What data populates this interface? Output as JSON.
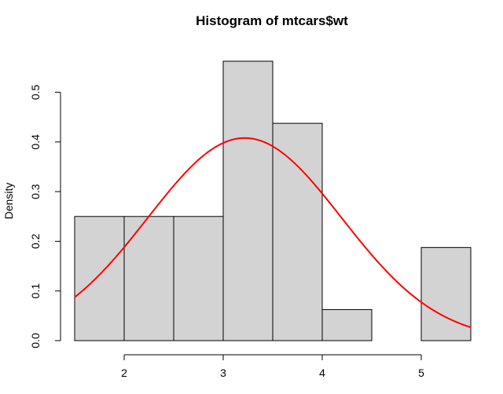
{
  "chart_data": {
    "type": "bar",
    "title": "Histogram of mtcars$wt",
    "xlabel": "",
    "ylabel": "Density",
    "xlim": [
      1.5,
      5.5
    ],
    "ylim": [
      0,
      0.5625
    ],
    "bins": [
      {
        "x0": 1.5,
        "x1": 2.0,
        "density": 0.25
      },
      {
        "x0": 2.0,
        "x1": 2.5,
        "density": 0.25
      },
      {
        "x0": 2.5,
        "x1": 3.0,
        "density": 0.25
      },
      {
        "x0": 3.0,
        "x1": 3.5,
        "density": 0.5625
      },
      {
        "x0": 3.5,
        "x1": 4.0,
        "density": 0.4375
      },
      {
        "x0": 4.0,
        "x1": 4.5,
        "density": 0.0625
      },
      {
        "x0": 4.5,
        "x1": 5.0,
        "density": 0.0
      },
      {
        "x0": 5.0,
        "x1": 5.5,
        "density": 0.1875
      }
    ],
    "x_ticks": [
      {
        "value": 2,
        "label": "2"
      },
      {
        "value": 3,
        "label": "3"
      },
      {
        "value": 4,
        "label": "4"
      },
      {
        "value": 5,
        "label": "5"
      }
    ],
    "y_ticks": [
      {
        "value": 0.0,
        "label": "0.0"
      },
      {
        "value": 0.1,
        "label": "0.1"
      },
      {
        "value": 0.2,
        "label": "0.2"
      },
      {
        "value": 0.3,
        "label": "0.3"
      },
      {
        "value": 0.4,
        "label": "0.4"
      },
      {
        "value": 0.5,
        "label": "0.5"
      }
    ],
    "curve": {
      "kind": "normal density",
      "mean": 3.217,
      "sd": 0.978,
      "color": "#ff0000"
    },
    "bar_fill": "#d3d3d3",
    "grid": false,
    "legend": "none"
  }
}
